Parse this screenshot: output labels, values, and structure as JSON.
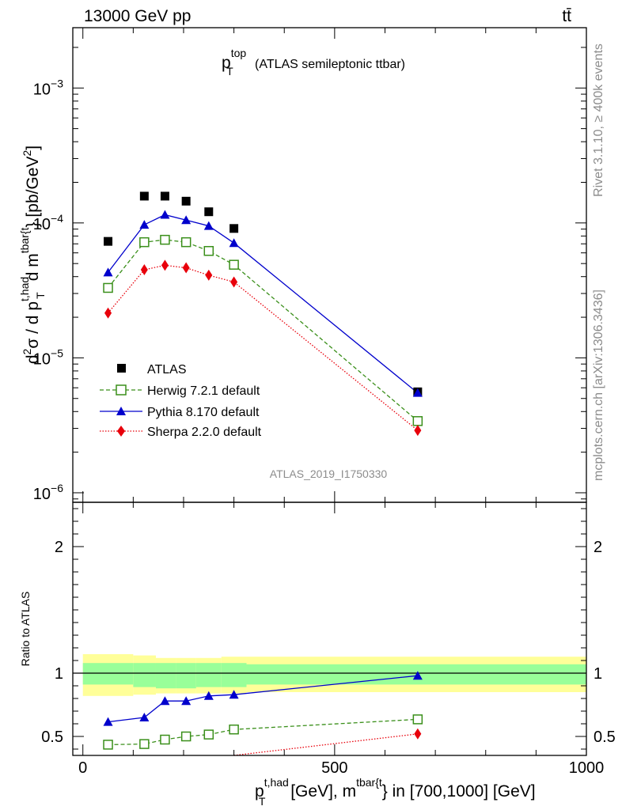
{
  "header": {
    "energy_label": "13000 GeV pp",
    "process_label": "tt̄"
  },
  "side_labels": {
    "rivet": "Rivet 3.1.10, ≥ 400k events",
    "mcplots": "mcplots.cern.ch [arXiv:1306.3436]"
  },
  "chart_data": [
    {
      "type": "scatter",
      "panel": "main",
      "title_main": "p",
      "title_sup": "top",
      "title_sub": "T",
      "title_rest": "(ATLAS semileptonic ttbar)",
      "watermark": "ATLAS_2019_I1750330",
      "y_scale": "log",
      "ylim": [
        8.5e-07,
        0.0028
      ],
      "xlim": [
        -20,
        1000
      ],
      "ylabel_parts": {
        "d": "d",
        "sup2": "2",
        "sigma": "σ / d p",
        "sup_thad": "t,had",
        "sub_T": "T",
        "dm": "d m",
        "sup_tbar": "tbar{t",
        "close": "}",
        "unit_open": "[pb/GeV",
        "unit_sup": "2",
        "unit_close": "]"
      },
      "y_ticks": [
        {
          "value": 1e-06,
          "base": "10",
          "exp": "−6"
        },
        {
          "value": 1e-05,
          "base": "10",
          "exp": "−5"
        },
        {
          "value": 0.0001,
          "base": "10",
          "exp": "−4"
        },
        {
          "value": 0.001,
          "base": "10",
          "exp": "−3"
        }
      ],
      "legend_position": "lower-left",
      "legend": [
        "ATLAS",
        "Herwig 7.2.1 default",
        "Pythia 8.170 default",
        "Sherpa 2.2.0 default"
      ],
      "x": [
        50,
        122,
        163,
        205,
        250,
        300,
        665
      ],
      "series": [
        {
          "name": "ATLAS",
          "color": "#000000",
          "marker": "square-filled",
          "line": "none",
          "values": [
            7.3e-05,
            0.000158,
            0.000158,
            0.000145,
            0.000121,
            9.1e-05,
            5.6e-06
          ]
        },
        {
          "name": "Herwig 7.2.1 default",
          "color": "#3a8f1a",
          "marker": "square-open",
          "line": "dashed",
          "values": [
            3.3e-05,
            7.2e-05,
            7.5e-05,
            7.2e-05,
            6.2e-05,
            4.9e-05,
            3.4e-06
          ]
        },
        {
          "name": "Pythia 8.170 default",
          "color": "#0000cc",
          "marker": "triangle",
          "line": "solid",
          "values": [
            4.3e-05,
            9.7e-05,
            0.000115,
            0.000105,
            9.5e-05,
            7.1e-05,
            5.5e-06
          ]
        },
        {
          "name": "Sherpa 2.2.0 default",
          "color": "#e8000b",
          "marker": "diamond",
          "line": "dotted",
          "values": [
            2.15e-05,
            4.5e-05,
            4.85e-05,
            4.65e-05,
            4.1e-05,
            3.65e-05,
            2.9e-06
          ]
        }
      ]
    },
    {
      "type": "scatter",
      "panel": "ratio",
      "ylabel": "Ratio to ATLAS",
      "y_scale": "linear",
      "ylim": [
        0.35,
        2.35
      ],
      "xlim": [
        -20,
        1000
      ],
      "y_ticks": [
        "0.5",
        "1",
        "2"
      ],
      "y_tick_values": [
        0.5,
        1,
        2
      ],
      "x_ticks": [
        "0",
        "500",
        "1000"
      ],
      "x_tick_values": [
        0,
        500,
        1000
      ],
      "xlabel_parts": {
        "p": "p",
        "sup_thad": "t,had",
        "sub_T": "T",
        "mid": " [GeV], m",
        "sup_tbar": "tbar{t",
        "rest": "} in [700,1000] [GeV]"
      },
      "reference_line": 1,
      "bands": [
        {
          "x0": 0,
          "x1": 100,
          "inner": [
            0.91,
            1.08
          ],
          "outer": [
            0.82,
            1.15
          ]
        },
        {
          "x0": 100,
          "x1": 145,
          "inner": [
            0.89,
            1.08
          ],
          "outer": [
            0.83,
            1.14
          ]
        },
        {
          "x0": 145,
          "x1": 185,
          "inner": [
            0.88,
            1.08
          ],
          "outer": [
            0.84,
            1.12
          ]
        },
        {
          "x0": 185,
          "x1": 225,
          "inner": [
            0.88,
            1.08
          ],
          "outer": [
            0.84,
            1.12
          ]
        },
        {
          "x0": 225,
          "x1": 275,
          "inner": [
            0.89,
            1.08
          ],
          "outer": [
            0.84,
            1.12
          ]
        },
        {
          "x0": 275,
          "x1": 325,
          "inner": [
            0.89,
            1.08
          ],
          "outer": [
            0.84,
            1.13
          ]
        },
        {
          "x0": 325,
          "x1": 1000,
          "inner": [
            0.91,
            1.07
          ],
          "outer": [
            0.85,
            1.13
          ]
        }
      ],
      "x": [
        50,
        122,
        163,
        205,
        250,
        300,
        665
      ],
      "series": [
        {
          "name": "Herwig 7.2.1 default",
          "color": "#3a8f1a",
          "marker": "square-open",
          "line": "dashed",
          "values": [
            0.435,
            0.44,
            0.475,
            0.5,
            0.515,
            0.555,
            0.635
          ]
        },
        {
          "name": "Pythia 8.170 default",
          "color": "#0000cc",
          "marker": "triangle",
          "line": "solid",
          "values": [
            0.615,
            0.65,
            0.78,
            0.78,
            0.82,
            0.83,
            0.98
          ]
        },
        {
          "name": "Sherpa 2.2.0 default",
          "color": "#e8000b",
          "marker": "diamond",
          "line": "dotted",
          "values": [
            null,
            null,
            null,
            null,
            null,
            0.35,
            0.52
          ]
        }
      ]
    }
  ]
}
